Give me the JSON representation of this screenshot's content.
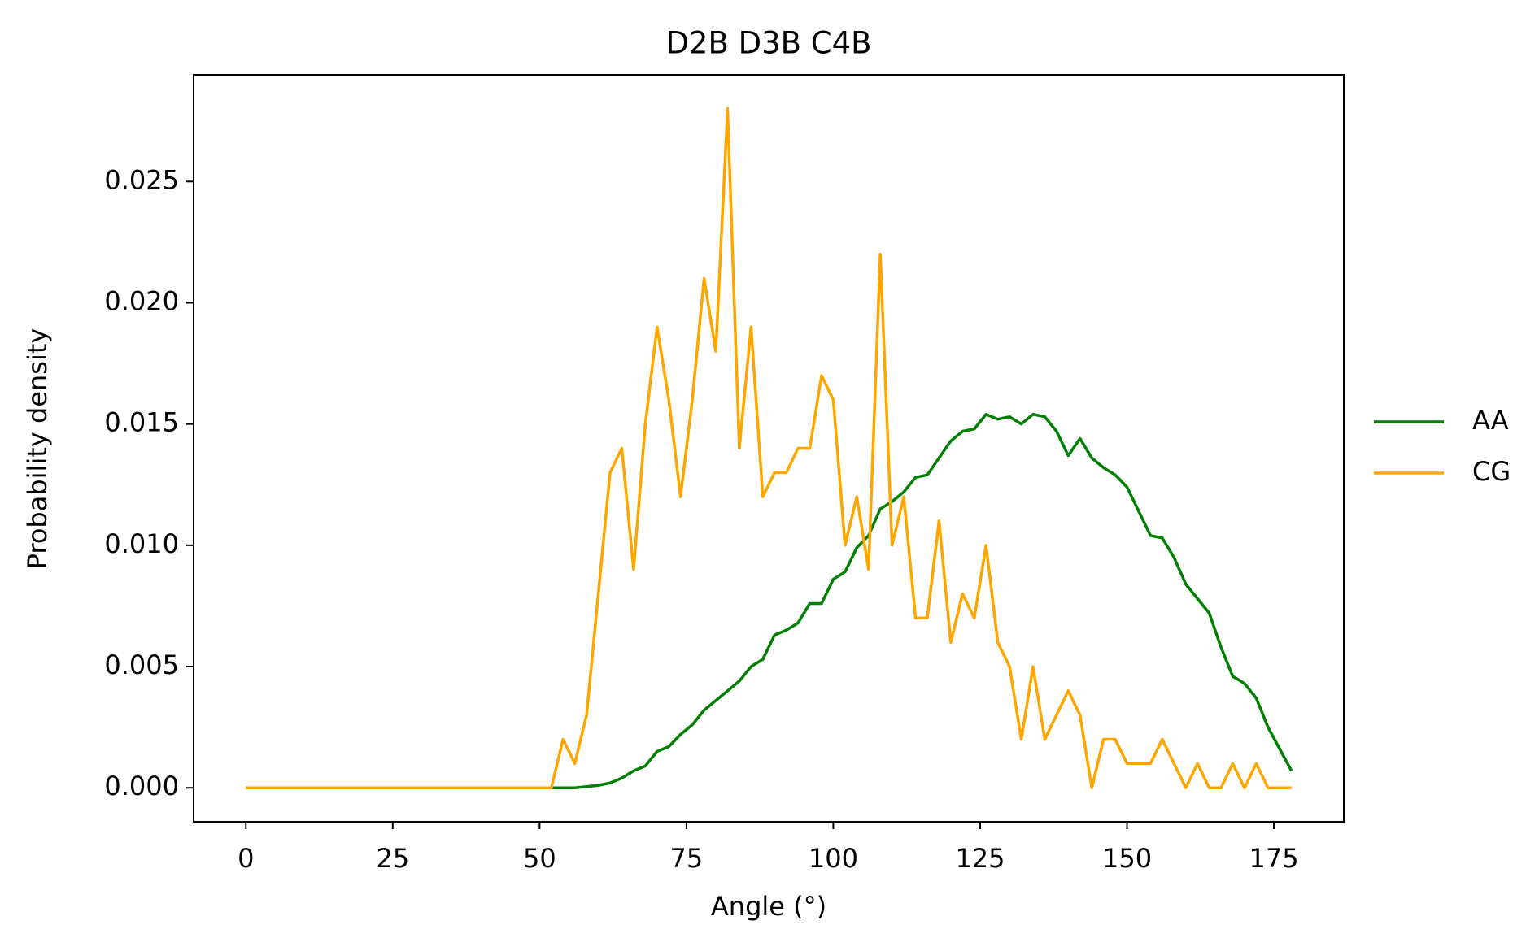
{
  "chart_data": {
    "type": "line",
    "title": "D2B D3B C4B",
    "xlabel": "Angle (°)",
    "ylabel": "Probability density",
    "x": [
      0,
      2,
      4,
      6,
      8,
      10,
      12,
      14,
      16,
      18,
      20,
      22,
      24,
      26,
      28,
      30,
      32,
      34,
      36,
      38,
      40,
      42,
      44,
      46,
      48,
      50,
      52,
      54,
      56,
      58,
      60,
      62,
      64,
      66,
      68,
      70,
      72,
      74,
      76,
      78,
      80,
      82,
      84,
      86,
      88,
      90,
      92,
      94,
      96,
      98,
      100,
      102,
      104,
      106,
      108,
      110,
      112,
      114,
      116,
      118,
      120,
      122,
      124,
      126,
      128,
      130,
      132,
      134,
      136,
      138,
      140,
      142,
      144,
      146,
      148,
      150,
      152,
      154,
      156,
      158,
      160,
      162,
      164,
      166,
      168,
      170,
      172,
      174,
      176,
      178
    ],
    "series": [
      {
        "name": "AA",
        "color": "#008000",
        "values": [
          0,
          0,
          0,
          0,
          0,
          0,
          0,
          0,
          0,
          0,
          0,
          0,
          0,
          0,
          0,
          0,
          0,
          0,
          0,
          0,
          0,
          0,
          0,
          0,
          0,
          0,
          0,
          0,
          0,
          5e-05,
          0.0001,
          0.0002,
          0.0004,
          0.0007,
          0.0009,
          0.0015,
          0.0017,
          0.0022,
          0.0026,
          0.0032,
          0.0036,
          0.004,
          0.0044,
          0.005,
          0.0053,
          0.0063,
          0.0065,
          0.0068,
          0.0076,
          0.0076,
          0.0086,
          0.0089,
          0.0099,
          0.0104,
          0.0115,
          0.0118,
          0.0122,
          0.0128,
          0.0129,
          0.0136,
          0.0143,
          0.0147,
          0.0148,
          0.0154,
          0.0152,
          0.0153,
          0.015,
          0.0154,
          0.0153,
          0.0147,
          0.0137,
          0.0144,
          0.0136,
          0.0132,
          0.0129,
          0.0124,
          0.0114,
          0.0104,
          0.0103,
          0.0095,
          0.0084,
          0.0078,
          0.0072,
          0.0058,
          0.0046,
          0.0043,
          0.0037,
          0.0025,
          0.0016,
          0.0007
        ]
      },
      {
        "name": "CG",
        "color": "#ffa500",
        "values": [
          0,
          0,
          0,
          0,
          0,
          0,
          0,
          0,
          0,
          0,
          0,
          0,
          0,
          0,
          0,
          0,
          0,
          0,
          0,
          0,
          0,
          0,
          0,
          0,
          0,
          0,
          0,
          0.002,
          0.001,
          0.003,
          0.008,
          0.013,
          0.014,
          0.009,
          0.015,
          0.019,
          0.016,
          0.012,
          0.016,
          0.021,
          0.018,
          0.028,
          0.014,
          0.019,
          0.012,
          0.013,
          0.013,
          0.014,
          0.014,
          0.017,
          0.016,
          0.01,
          0.012,
          0.009,
          0.022,
          0.01,
          0.012,
          0.007,
          0.007,
          0.011,
          0.006,
          0.008,
          0.007,
          0.01,
          0.006,
          0.005,
          0.002,
          0.005,
          0.002,
          0.003,
          0.004,
          0.003,
          0,
          0.002,
          0.002,
          0.001,
          0.001,
          0.001,
          0.002,
          0.001,
          0,
          0.001,
          0,
          0,
          0.001,
          0,
          0.001,
          0,
          0,
          0
        ]
      }
    ],
    "xlim": [
      -8.9,
      186.9
    ],
    "xticks": [
      0,
      25,
      50,
      75,
      100,
      125,
      150,
      175
    ],
    "ylim": [
      -0.0014,
      0.0294
    ],
    "yticks": [
      {
        "value": 0,
        "label": "0.000"
      },
      {
        "value": 0.005,
        "label": "0.005"
      },
      {
        "value": 0.01,
        "label": "0.010"
      },
      {
        "value": 0.015,
        "label": "0.015"
      },
      {
        "value": 0.02,
        "label": "0.020"
      },
      {
        "value": 0.025,
        "label": "0.025"
      }
    ],
    "legend": "outside-right"
  }
}
